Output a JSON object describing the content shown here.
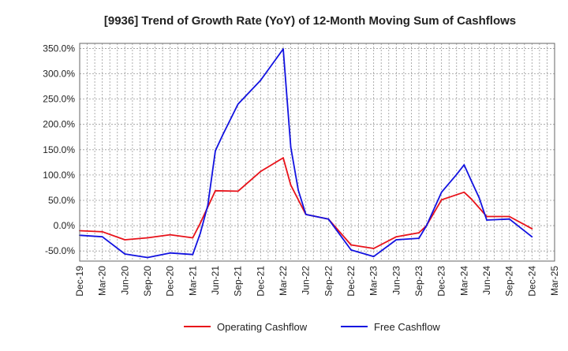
{
  "chart_data": {
    "type": "line",
    "title": "[9936]  Trend of Growth Rate (YoY) of 12-Month Moving Sum of Cashflows",
    "xlabel": "",
    "ylabel": "",
    "ylim": [
      -70,
      360
    ],
    "yticks": [
      350,
      300,
      250,
      200,
      150,
      100,
      50,
      0,
      -50
    ],
    "ytick_labels": [
      "350.0%",
      "300.0%",
      "250.0%",
      "200.0%",
      "150.0%",
      "100.0%",
      "50.0%",
      "0.0%",
      "-50.0%"
    ],
    "x_tick_labels": [
      "Dec-19",
      "Mar-20",
      "Jun-20",
      "Sep-20",
      "Dec-20",
      "Mar-21",
      "Jun-21",
      "Sep-21",
      "Dec-21",
      "Mar-22",
      "Jun-22",
      "Sep-22",
      "Dec-22",
      "Mar-23",
      "Jun-23",
      "Sep-23",
      "Dec-23",
      "Mar-24",
      "Jun-24",
      "Sep-24",
      "Dec-24",
      "Mar-25"
    ],
    "x_range": [
      "2019-12",
      "2025-03"
    ],
    "grid": true,
    "legend_position": "bottom",
    "series": [
      {
        "name": "Operating Cashflow",
        "color": "#e8121a",
        "points": [
          [
            "2019-12",
            -10
          ],
          [
            "2020-03",
            -12
          ],
          [
            "2020-06",
            -28
          ],
          [
            "2020-09",
            -24
          ],
          [
            "2020-12",
            -18
          ],
          [
            "2021-03",
            -24
          ],
          [
            "2021-04",
            5
          ],
          [
            "2021-06",
            69
          ],
          [
            "2021-09",
            68
          ],
          [
            "2021-12",
            107
          ],
          [
            "2022-03",
            134
          ],
          [
            "2022-04",
            80
          ],
          [
            "2022-06",
            22
          ],
          [
            "2022-09",
            13
          ],
          [
            "2022-12",
            -38
          ],
          [
            "2023-03",
            -45
          ],
          [
            "2023-06",
            -22
          ],
          [
            "2023-09",
            -14
          ],
          [
            "2023-10",
            0
          ],
          [
            "2023-12",
            51
          ],
          [
            "2024-03",
            66
          ],
          [
            "2024-04",
            52
          ],
          [
            "2024-06",
            18
          ],
          [
            "2024-09",
            18
          ],
          [
            "2024-12",
            -6
          ]
        ]
      },
      {
        "name": "Free Cashflow",
        "color": "#1212e0",
        "points": [
          [
            "2019-12",
            -19
          ],
          [
            "2020-03",
            -22
          ],
          [
            "2020-06",
            -56
          ],
          [
            "2020-09",
            -63
          ],
          [
            "2020-12",
            -54
          ],
          [
            "2021-03",
            -57
          ],
          [
            "2021-04",
            -15
          ],
          [
            "2021-05",
            40
          ],
          [
            "2021-06",
            148
          ],
          [
            "2021-07",
            180
          ],
          [
            "2021-09",
            240
          ],
          [
            "2021-12",
            287
          ],
          [
            "2022-03",
            349
          ],
          [
            "2022-04",
            155
          ],
          [
            "2022-05",
            70
          ],
          [
            "2022-06",
            22
          ],
          [
            "2022-09",
            13
          ],
          [
            "2022-12",
            -48
          ],
          [
            "2023-03",
            -61
          ],
          [
            "2023-06",
            -28
          ],
          [
            "2023-09",
            -25
          ],
          [
            "2023-10",
            0
          ],
          [
            "2023-12",
            66
          ],
          [
            "2024-02",
            101
          ],
          [
            "2024-03",
            120
          ],
          [
            "2024-04",
            87
          ],
          [
            "2024-05",
            55
          ],
          [
            "2024-06",
            11
          ],
          [
            "2024-09",
            13
          ],
          [
            "2024-12",
            -22
          ]
        ]
      }
    ]
  }
}
